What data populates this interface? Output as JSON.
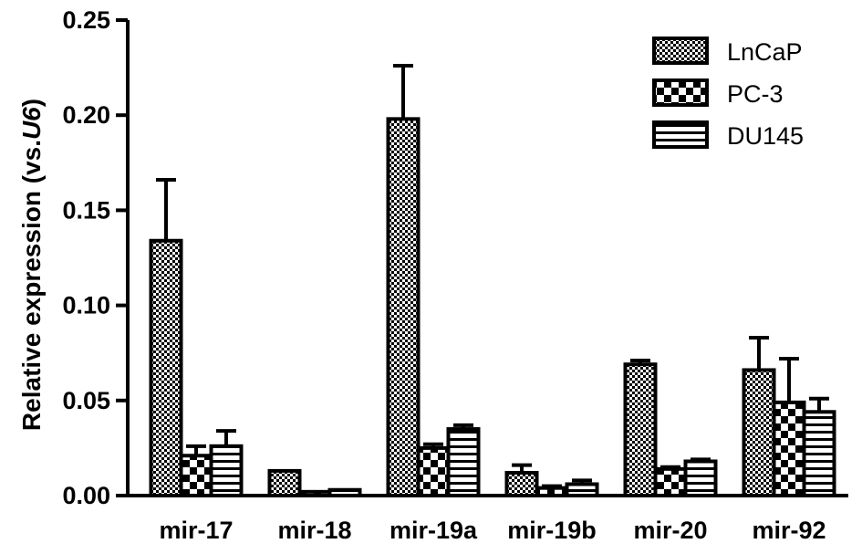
{
  "chart_data": {
    "type": "bar",
    "title": "",
    "xlabel": "",
    "ylabel": "Relative expression (vs.",
    "ylabel_italic": "U6",
    "ylabel_close": ")",
    "ylim": [
      0,
      0.25
    ],
    "yticks": [
      "0.00",
      "0.05",
      "0.10",
      "0.15",
      "0.20",
      "0.25"
    ],
    "grid": false,
    "legend_position": "top-right",
    "categories": [
      "mir-17",
      "mir-18",
      "mir-19a",
      "mir-19b",
      "mir-20",
      "mir-92"
    ],
    "series": [
      {
        "name": "LnCaP",
        "pattern": "fine-checker",
        "values": [
          0.134,
          0.013,
          0.198,
          0.012,
          0.069,
          0.066
        ],
        "errors": [
          0.032,
          0.0,
          0.028,
          0.004,
          0.002,
          0.017
        ]
      },
      {
        "name": "PC-3",
        "pattern": "coarse-checker",
        "values": [
          0.021,
          0.002,
          0.025,
          0.004,
          0.014,
          0.049
        ],
        "errors": [
          0.005,
          0.0,
          0.002,
          0.001,
          0.001,
          0.023
        ]
      },
      {
        "name": "DU145",
        "pattern": "horizontal-stripes",
        "values": [
          0.026,
          0.003,
          0.035,
          0.006,
          0.018,
          0.044
        ],
        "errors": [
          0.008,
          0.0,
          0.002,
          0.002,
          0.001,
          0.007
        ]
      }
    ]
  }
}
